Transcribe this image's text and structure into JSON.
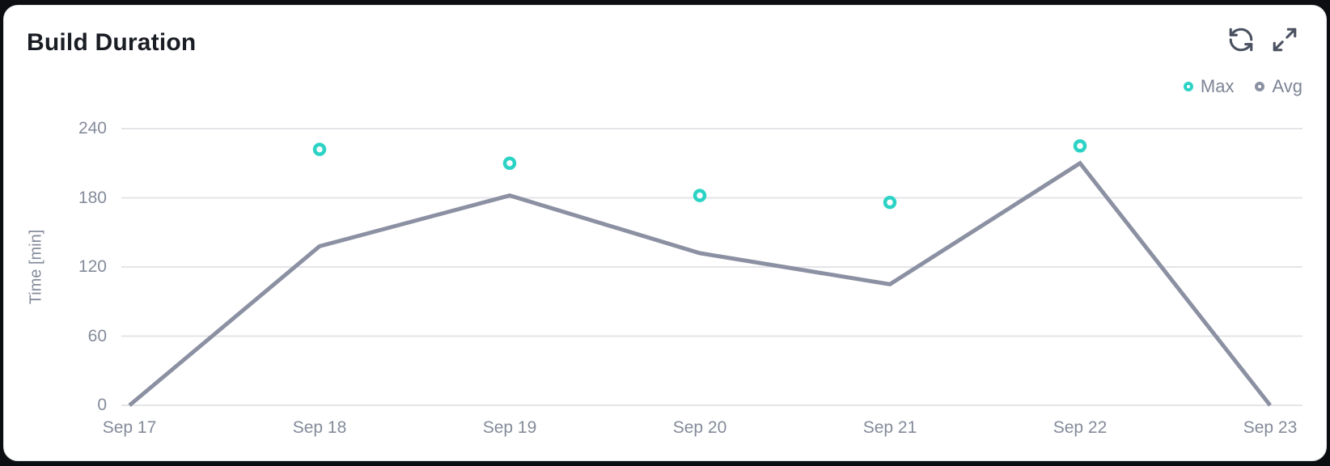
{
  "card": {
    "title": "Build Duration"
  },
  "toolbar": {
    "refresh_icon": "refresh-icon",
    "expand_icon": "expand-icon"
  },
  "colors": {
    "accent_teal": "#2cd3c5",
    "series_gray": "#8b90a2",
    "grid": "#e4e5e9",
    "axis_text": "#848b9a",
    "legend_text": "#7d8494",
    "title_text": "#1a1d24",
    "icon": "#4a5160",
    "card_background": "#ffffff",
    "card_border": "#e3e4e8",
    "page_background": "#0c0e11"
  },
  "chart_data": {
    "type": "line",
    "title": "Build Duration",
    "categories": [
      "Sep 17",
      "Sep 18",
      "Sep 19",
      "Sep 20",
      "Sep 21",
      "Sep 22",
      "Sep 23"
    ],
    "series": [
      {
        "name": "Max",
        "type": "scatter",
        "color": "#2cd3c5",
        "values": [
          null,
          222,
          210,
          182,
          176,
          225,
          null
        ]
      },
      {
        "name": "Avg",
        "type": "line",
        "color": "#8b90a2",
        "values": [
          0,
          138,
          182,
          132,
          105,
          210,
          0
        ]
      }
    ],
    "xlabel": "",
    "ylabel": "Time [min]",
    "yticks": [
      0,
      60,
      120,
      180,
      240
    ],
    "ylim": [
      0,
      240
    ],
    "grid": true,
    "legend_position": "top-right"
  }
}
